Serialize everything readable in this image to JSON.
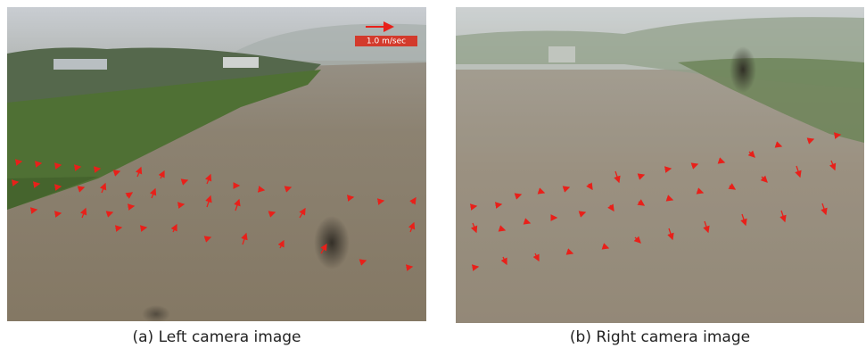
{
  "figure": {
    "left": {
      "scale_label": "1.0 m/sec",
      "caption": "(a) Left camera image"
    },
    "right": {
      "caption": "(b) Right camera image"
    }
  }
}
